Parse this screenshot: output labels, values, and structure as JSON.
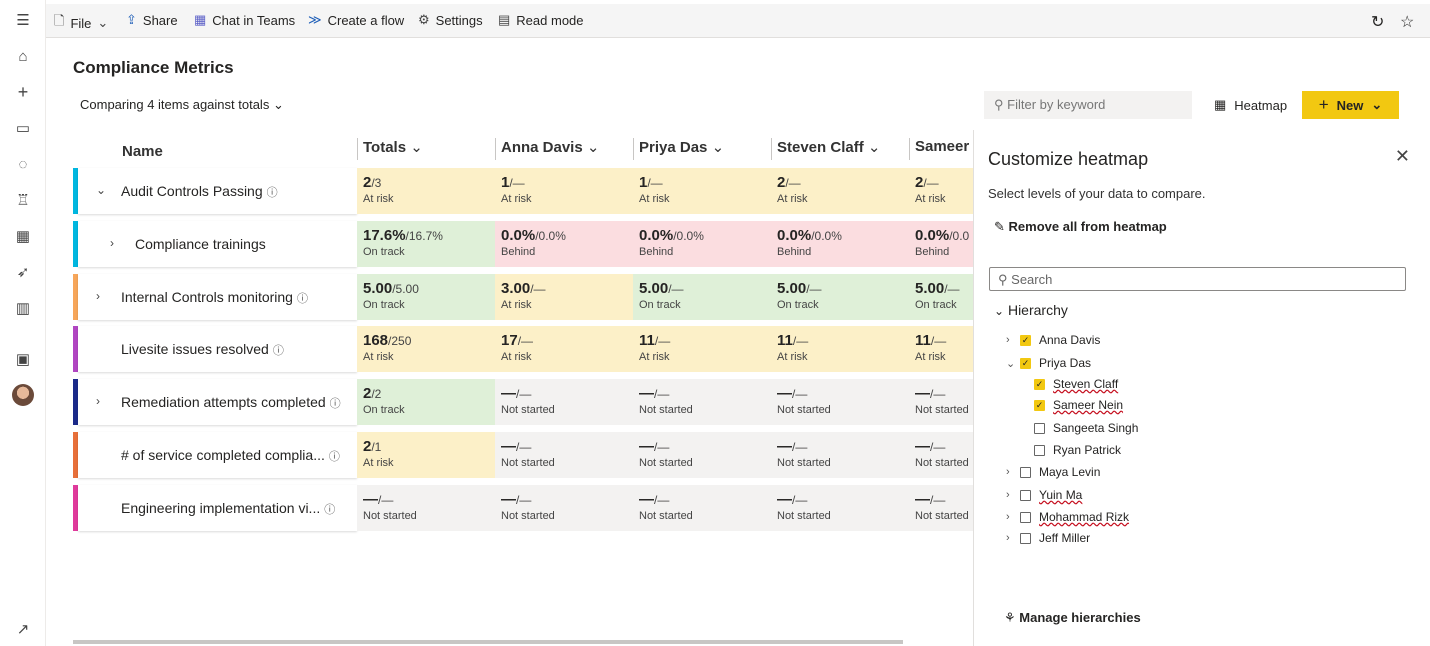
{
  "rail": {
    "icons": [
      "hamburger-icon",
      "home-icon",
      "plus-icon",
      "folder-icon",
      "database-icon",
      "trophy-icon",
      "apps-icon",
      "rocket-icon",
      "book-icon",
      "chat-icon",
      "avatar",
      "external-arrow-icon"
    ]
  },
  "toolbar": {
    "file": "File",
    "share": "Share",
    "chat": "Chat in Teams",
    "flow": "Create a flow",
    "settings": "Settings",
    "read_mode": "Read mode"
  },
  "page": {
    "title": "Compliance Metrics",
    "compare": "Comparing 4 items against totals",
    "filter_placeholder": "Filter by keyword",
    "heatmap": "Heatmap",
    "new": "New"
  },
  "grid": {
    "headers": {
      "name": "Name",
      "totals": "Totals",
      "c1": "Anna Davis",
      "c2": "Priya Das",
      "c3": "Steven Claff",
      "c4": "Sameer"
    },
    "rows": [
      {
        "name": "Audit Controls Passing",
        "color": "#00b7e0",
        "expander": "down",
        "info": true,
        "cells": [
          [
            "2",
            "/3",
            "At risk",
            "warn"
          ],
          [
            "1",
            "/—",
            "At risk",
            "warn"
          ],
          [
            "1",
            "/—",
            "At risk",
            "warn"
          ],
          [
            "2",
            "/—",
            "At risk",
            "warn"
          ],
          [
            "2",
            "/—",
            "At risk",
            "warn"
          ]
        ]
      },
      {
        "name": "Compliance trainings",
        "color": "#00b7e0",
        "expander": "right",
        "indent": true,
        "info": false,
        "cells": [
          [
            "17.6%",
            "/16.7%",
            "On track",
            "ok"
          ],
          [
            "0.0%",
            "/0.0%",
            "Behind",
            "bad"
          ],
          [
            "0.0%",
            "/0.0%",
            "Behind",
            "bad"
          ],
          [
            "0.0%",
            "/0.0%",
            "Behind",
            "bad"
          ],
          [
            "0.0%",
            "/0.0",
            "Behind",
            "bad"
          ]
        ]
      },
      {
        "name": "Internal Controls monitoring",
        "color": "#f7a65a",
        "expander": "right",
        "info": true,
        "cells": [
          [
            "5.00",
            "/5.00",
            "On track",
            "ok"
          ],
          [
            "3.00",
            "/—",
            "At risk",
            "warn"
          ],
          [
            "5.00",
            "/—",
            "On track",
            "ok"
          ],
          [
            "5.00",
            "/—",
            "On track",
            "ok"
          ],
          [
            "5.00",
            "/—",
            "On track",
            "ok"
          ]
        ]
      },
      {
        "name": "Livesite issues resolved",
        "color": "#b146c2",
        "expander": "none",
        "info": true,
        "cells": [
          [
            "168",
            "/250",
            "At risk",
            "warn"
          ],
          [
            "17",
            "/—",
            "At risk",
            "warn"
          ],
          [
            "11",
            "/—",
            "At risk",
            "warn"
          ],
          [
            "11",
            "/—",
            "At risk",
            "warn"
          ],
          [
            "11",
            "/—",
            "At risk",
            "warn"
          ]
        ]
      },
      {
        "name": "Remediation attempts completed",
        "color": "#1b2a8a",
        "expander": "right",
        "info": true,
        "cells": [
          [
            "2",
            "/2",
            "On track",
            "ok"
          ],
          [
            "—",
            "/—",
            "Not started",
            "none"
          ],
          [
            "—",
            "/—",
            "Not started",
            "none"
          ],
          [
            "—",
            "/—",
            "Not started",
            "none"
          ],
          [
            "—",
            "/—",
            "Not started",
            "none"
          ]
        ]
      },
      {
        "name": "# of service completed complia...",
        "color": "#e8703a",
        "expander": "none",
        "info": true,
        "cells": [
          [
            "2",
            "/1",
            "At risk",
            "warn"
          ],
          [
            "—",
            "/—",
            "Not started",
            "none"
          ],
          [
            "—",
            "/—",
            "Not started",
            "none"
          ],
          [
            "—",
            "/—",
            "Not started",
            "none"
          ],
          [
            "—",
            "/—",
            "Not started",
            "none"
          ]
        ]
      },
      {
        "name": "Engineering implementation vi...",
        "color": "#e03a9c",
        "expander": "none",
        "info": true,
        "cells": [
          [
            "—",
            "/—",
            "Not started",
            "none"
          ],
          [
            "—",
            "/—",
            "Not started",
            "none"
          ],
          [
            "—",
            "/—",
            "Not started",
            "none"
          ],
          [
            "—",
            "/—",
            "Not started",
            "none"
          ],
          [
            "—",
            "/—",
            "Not started",
            "none"
          ]
        ]
      }
    ],
    "colors": {
      "ok": "#dff0d8",
      "warn": "#fcf0c8",
      "bad": "#fbdde0",
      "none": "#f3f2f1"
    }
  },
  "panel": {
    "title": "Customize heatmap",
    "desc": "Select levels of your data to compare.",
    "remove": "Remove all from heatmap",
    "search": "Search",
    "hierarchy": "Hierarchy",
    "items": [
      {
        "label": "Anna Davis",
        "checked": true,
        "level": 0,
        "chev": "›"
      },
      {
        "label": "Priya Das",
        "checked": true,
        "level": 0,
        "chev": "⌄"
      },
      {
        "label": "Steven Claff",
        "checked": true,
        "level": 1,
        "chev": "",
        "wavy": true
      },
      {
        "label": "Sameer Nein",
        "checked": true,
        "level": 1,
        "chev": "",
        "wavy": true
      },
      {
        "label": "Sangeeta Singh",
        "checked": false,
        "level": 1,
        "chev": ""
      },
      {
        "label": "Ryan Patrick",
        "checked": false,
        "level": 1,
        "chev": ""
      },
      {
        "label": "Maya Levin",
        "checked": false,
        "level": 0,
        "chev": "›"
      },
      {
        "label": "Yuin Ma",
        "checked": false,
        "level": 0,
        "chev": "›",
        "wavy": true
      },
      {
        "label": "Mohammad Rizk",
        "checked": false,
        "level": 0,
        "chev": "›",
        "wavy": true
      },
      {
        "label": "Jeff Miller",
        "checked": false,
        "level": 0,
        "chev": "›"
      }
    ],
    "manage": "Manage hierarchies"
  }
}
